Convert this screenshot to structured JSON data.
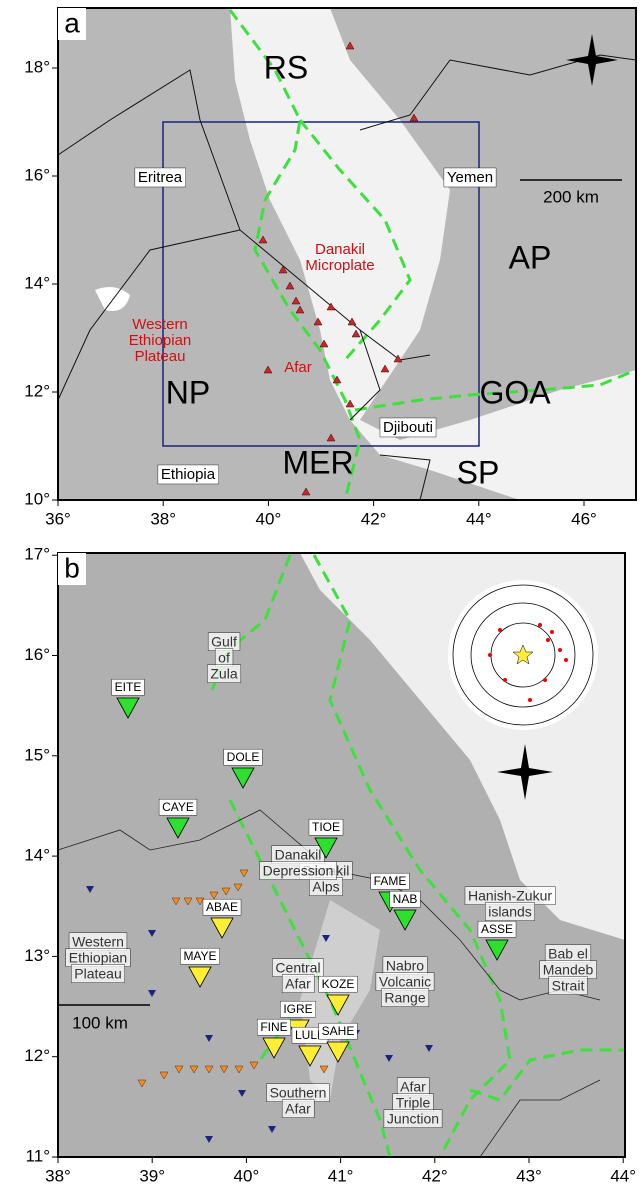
{
  "panels": [
    {
      "label": "a",
      "x_ticks": [
        "36°",
        "38°",
        "40°",
        "42°",
        "44°",
        "46°"
      ],
      "y_ticks": [
        "10°",
        "12°",
        "14°",
        "16°",
        "18°"
      ],
      "regions": [
        "RS",
        "AP",
        "GOA",
        "NP",
        "MER",
        "SP"
      ],
      "countries": [
        "Eritrea",
        "Yemen",
        "Ethiopia",
        "Djibouti"
      ],
      "features": [
        {
          "lines": [
            "Danakil",
            "Microplate"
          ]
        },
        {
          "lines": [
            "Western",
            "Ethiopian",
            "Plateau"
          ]
        },
        {
          "lines": [
            "Afar"
          ]
        }
      ],
      "scale_bar": "200 km"
    },
    {
      "label": "b",
      "x_ticks": [
        "38°",
        "39°",
        "40°",
        "41°",
        "42°",
        "43°",
        "44°"
      ],
      "y_ticks": [
        "11°",
        "12°",
        "13°",
        "14°",
        "15°",
        "16°",
        "17°"
      ],
      "stations": [
        "EITE",
        "CAYE",
        "DOLE",
        "TIOE",
        "FAME",
        "NAB",
        "ASSE",
        "ABAE",
        "MAYE",
        "KOZE",
        "IGRE",
        "FINE",
        "LULE",
        "SAHE"
      ],
      "features": [
        {
          "lines": [
            "Gulf",
            "of",
            "Zula"
          ]
        },
        {
          "lines": [
            "Danakil",
            "Alps"
          ]
        },
        {
          "lines": [
            "Danakil",
            "Depression"
          ]
        },
        {
          "lines": [
            "Hanish-Zukur",
            "islands"
          ]
        },
        {
          "lines": [
            "Western",
            "Ethiopian",
            "Plateau"
          ]
        },
        {
          "lines": [
            "Central",
            "Afar"
          ]
        },
        {
          "lines": [
            "Nabro",
            "Volcanic",
            "Range"
          ]
        },
        {
          "lines": [
            "Bab el",
            "Mandeb",
            "Strait"
          ]
        },
        {
          "lines": [
            "Southern",
            "Afar"
          ]
        },
        {
          "lines": [
            "Afar",
            "Triple",
            "Junction"
          ]
        }
      ],
      "scale_bar": "100 km"
    }
  ]
}
